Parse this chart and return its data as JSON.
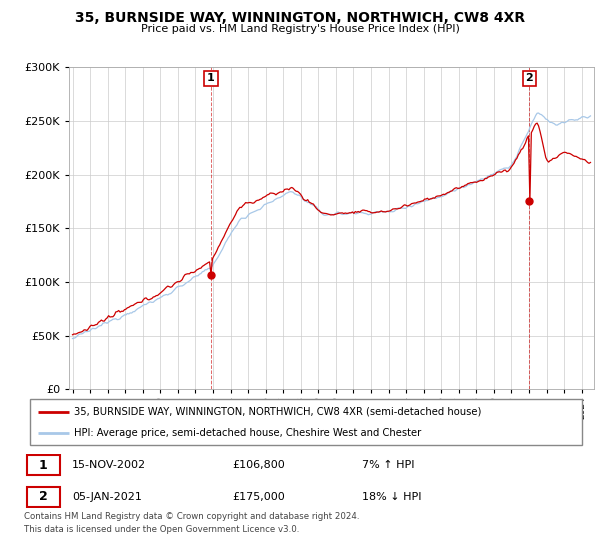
{
  "title": "35, BURNSIDE WAY, WINNINGTON, NORTHWICH, CW8 4XR",
  "subtitle": "Price paid vs. HM Land Registry's House Price Index (HPI)",
  "legend_line1": "35, BURNSIDE WAY, WINNINGTON, NORTHWICH, CW8 4XR (semi-detached house)",
  "legend_line2": "HPI: Average price, semi-detached house, Cheshire West and Chester",
  "sale1_date": "15-NOV-2002",
  "sale1_price": "£106,800",
  "sale1_hpi": "7% ↑ HPI",
  "sale2_date": "05-JAN-2021",
  "sale2_price": "£175,000",
  "sale2_hpi": "18% ↓ HPI",
  "footnote1": "Contains HM Land Registry data © Crown copyright and database right 2024.",
  "footnote2": "This data is licensed under the Open Government Licence v3.0.",
  "hpi_color": "#a8c8e8",
  "sale_color": "#cc0000",
  "marker1_x": 2002.88,
  "marker1_y": 106800,
  "marker2_x": 2021.02,
  "marker2_y": 175000,
  "ylim": [
    0,
    300000
  ],
  "xlim_start": 1994.8,
  "xlim_end": 2024.7,
  "background_color": "#ffffff",
  "grid_color": "#cccccc"
}
